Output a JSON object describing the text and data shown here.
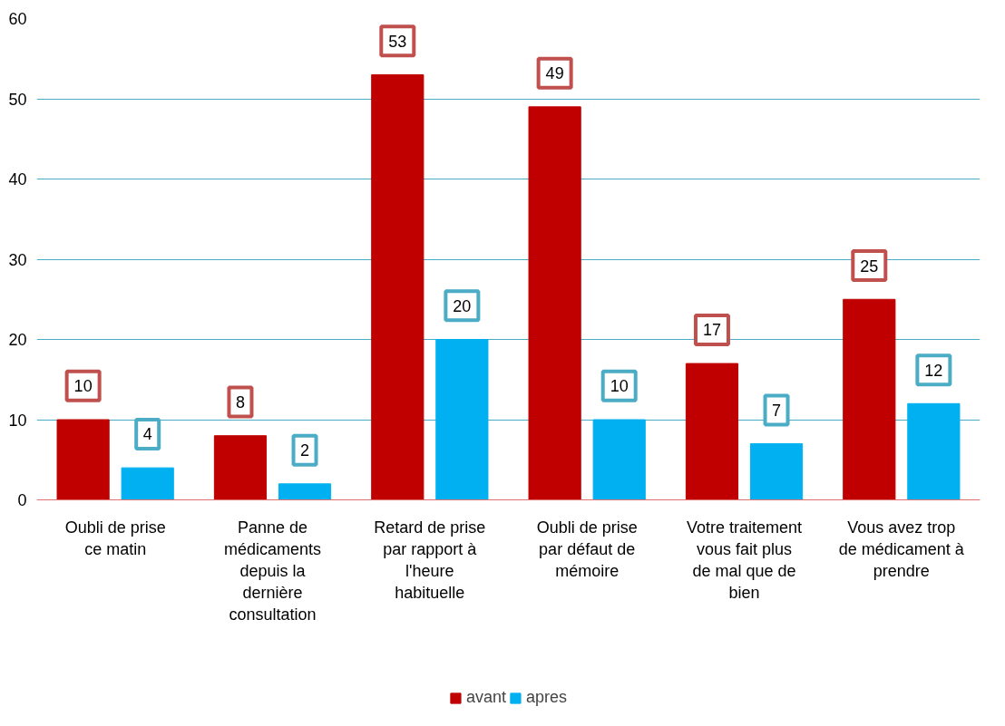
{
  "chart_data": {
    "type": "bar",
    "categories": [
      "Oubli de prise ce matin",
      "Panne de médicaments depuis la dernière consultation",
      "Retard de prise par rapport à l'heure habituelle",
      "Oubli de prise par défaut de mémoire",
      "Votre traitement vous fait plus de mal que de bien",
      "Vous avez trop de médicament à prendre"
    ],
    "series": [
      {
        "name": "avant",
        "color": "#c00000",
        "values": [
          10,
          8,
          53,
          49,
          17,
          25
        ]
      },
      {
        "name": "apres",
        "color": "#00b0f0",
        "values": [
          4,
          2,
          20,
          10,
          7,
          12
        ]
      }
    ],
    "ylim": [
      0,
      60
    ],
    "yticks": [
      0,
      10,
      20,
      30,
      40,
      50,
      60
    ],
    "grid": "y",
    "legend": "bottom",
    "data_labels": true
  }
}
